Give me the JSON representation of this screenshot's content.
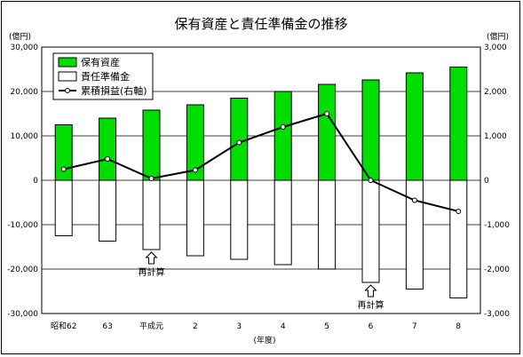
{
  "chart_data": {
    "type": "bar",
    "title": "保有資産と責任準備金の推移",
    "left_unit": "(億円)",
    "right_unit": "(億円)",
    "xlabel": "(年度)",
    "categories": [
      "昭和62",
      "63",
      "平成元",
      "2",
      "3",
      "4",
      "5",
      "6",
      "7",
      "8"
    ],
    "ylim": [
      -30000,
      30000
    ],
    "y_ticks": [
      "30,000",
      "20,000",
      "10,000",
      "0",
      "-10,000",
      "-20,000",
      "-30,000"
    ],
    "y2lim": [
      -3000,
      3000
    ],
    "y2_ticks": [
      "3,000",
      "2,000",
      "1,000",
      "0",
      "-1,000",
      "-2,000",
      "-3,000"
    ],
    "series": [
      {
        "name": "保有資産",
        "kind": "bar",
        "axis": "left",
        "color": "#00dd00",
        "values": [
          12500,
          14000,
          15800,
          17000,
          18500,
          20000,
          21600,
          22600,
          24200,
          25500
        ]
      },
      {
        "name": "責任準備金",
        "kind": "bar",
        "axis": "left",
        "color": "#ffffff",
        "values": [
          -12500,
          -13700,
          -15600,
          -17000,
          -17800,
          -19000,
          -20000,
          -23000,
          -24500,
          -26500
        ]
      },
      {
        "name": "累積損益(右軸)",
        "kind": "line",
        "axis": "right",
        "color": "#000000",
        "values": [
          250,
          480,
          40,
          230,
          850,
          1200,
          1500,
          0,
          -450,
          -700
        ]
      }
    ],
    "annotations": [
      {
        "text": "再計算",
        "category_index": 2
      },
      {
        "text": "再計算",
        "category_index": 7
      }
    ],
    "grid": "horizontal",
    "legend_position": "top-left"
  }
}
